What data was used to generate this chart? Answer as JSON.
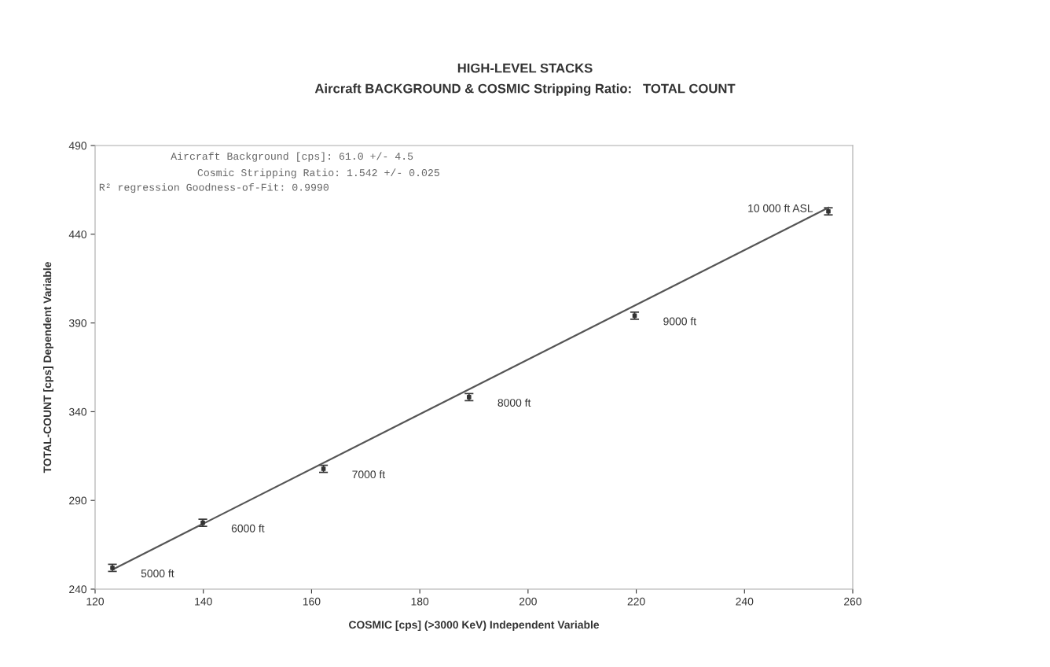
{
  "chart_data": {
    "type": "scatter",
    "title": "HIGH-LEVEL STACKS",
    "subtitle": "Aircraft BACKGROUND & COSMIC Stripping Ratio:   TOTAL COUNT",
    "xlabel": "COSMIC [cps] (>3000 KeV) Independent Variable",
    "ylabel": "TOTAL-COUNT [cps] Dependent Variable",
    "x": [
      123.2,
      139.9,
      162.2,
      189.1,
      219.7,
      255.5
    ],
    "series": [
      {
        "color": "#333333",
        "marker": "square",
        "values": [
          252.0,
          277.4,
          307.8,
          348.2,
          394.1,
          452.9
        ],
        "errors": [
          2,
          2,
          2,
          2,
          2,
          2
        ]
      },
      {
        "type": "line",
        "color": "#555555",
        "x": [
          123.2,
          255.5
        ],
        "values": [
          251.0,
          455.0
        ]
      }
    ],
    "annotations": [
      "Aircraft Background [cps]: 61.0 +/- 4.5",
      "Cosmic Stripping Ratio: 1.542 +/- 0.025",
      "R² regression Goodness-of-Fit: 0.9990",
      {
        "text": "5000 ft",
        "x": 123.2,
        "y": 252.0
      },
      {
        "text": "6000 ft",
        "x": 139.9,
        "y": 277.4
      },
      {
        "text": "7000 ft",
        "x": 162.2,
        "y": 307.8
      },
      {
        "text": "8000 ft",
        "x": 189.1,
        "y": 348.2
      },
      {
        "text": "9000 ft",
        "x": 219.7,
        "y": 394.1
      },
      {
        "text": "10 000 ft ASL",
        "x": 255.5,
        "y": 452.9
      }
    ],
    "xlim": [
      120,
      260
    ],
    "xticks": [
      120,
      140,
      160,
      180,
      200,
      220,
      240,
      260
    ],
    "ylim": [
      240,
      490
    ],
    "yticks": [
      240,
      290,
      340,
      390,
      440,
      490
    ],
    "grid": false,
    "legend": false
  }
}
